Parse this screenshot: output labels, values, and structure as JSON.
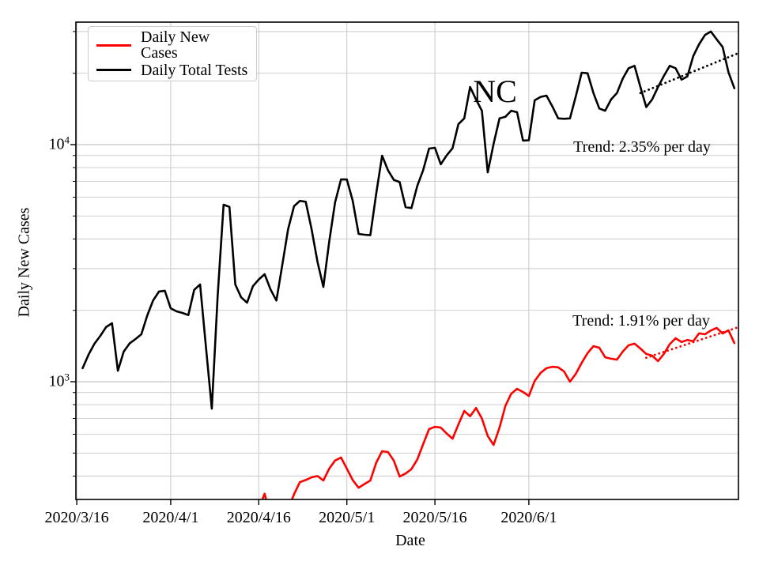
{
  "axes": {
    "xlabel": "Date",
    "ylabel": "Daily New Cases",
    "y_ticks": [
      {
        "base": "10",
        "exp": "3",
        "value": 1000
      },
      {
        "base": "10",
        "exp": "4",
        "value": 10000
      }
    ]
  },
  "annotations": {
    "state": "NC",
    "tests_trend": "Trend: 2.35% per day",
    "cases_trend": "Trend: 1.91% per day"
  },
  "colors": {
    "cases_line": "#ff0000",
    "tests_line": "#000000",
    "grid_major": "#b5b5b5",
    "grid_minor": "#c9c9c9",
    "spine": "#000000"
  },
  "chart_data": {
    "type": "line",
    "title": "NC",
    "xlabel": "Date",
    "ylabel": "Daily New Cases",
    "y_scale": "log",
    "grid": "both",
    "legend_position": "upper left",
    "x_unit": "days since 2020/3/16",
    "x_start_date": "2020/3/16",
    "x_range_days": [
      -0.15,
      112.7
    ],
    "y_range": [
      318,
      32700
    ],
    "x_ticks": [
      {
        "day": 0,
        "label": "2020/3/16"
      },
      {
        "day": 16,
        "label": "2020/4/1"
      },
      {
        "day": 31,
        "label": "2020/4/16"
      },
      {
        "day": 46,
        "label": "2020/5/1"
      },
      {
        "day": 61,
        "label": "2020/5/16"
      },
      {
        "day": 77,
        "label": "2020/6/1"
      }
    ],
    "y_tick_values": [
      1000,
      10000
    ],
    "y_minor_values": [
      400,
      500,
      600,
      700,
      800,
      900,
      2000,
      3000,
      4000,
      5000,
      6000,
      7000,
      8000,
      9000,
      20000,
      30000
    ],
    "series": [
      {
        "name": "Daily New Cases",
        "color": "#ff0000",
        "style": "solid",
        "x_days": [
          30,
          31,
          32,
          33,
          34,
          35,
          36,
          37,
          38,
          39,
          40,
          41,
          42,
          43,
          44,
          45,
          46,
          47,
          48,
          49,
          50,
          51,
          52,
          53,
          54,
          55,
          56,
          57,
          58,
          59,
          60,
          61,
          62,
          63,
          64,
          65,
          66,
          67,
          68,
          69,
          70,
          71,
          72,
          73,
          74,
          75,
          76,
          77,
          78,
          79,
          80,
          81,
          82,
          83,
          84,
          85,
          86,
          87,
          88,
          89,
          90,
          91,
          92,
          93,
          94,
          95,
          96,
          97,
          98,
          99,
          100,
          101,
          102,
          103,
          104,
          105,
          106,
          107,
          108,
          109,
          110,
          111,
          112
        ],
        "values": [
          260,
          290,
          337,
          270,
          250,
          265,
          290,
          335,
          377,
          385,
          395,
          400,
          383,
          430,
          465,
          479,
          430,
          385,
          357,
          370,
          383,
          455,
          509,
          505,
          465,
          398,
          410,
          428,
          470,
          545,
          631,
          645,
          640,
          605,
          575,
          660,
          753,
          715,
          775,
          700,
          590,
          541,
          640,
          790,
          890,
          933,
          905,
          871,
          1008,
          1090,
          1140,
          1156,
          1150,
          1104,
          1000,
          1080,
          1200,
          1320,
          1413,
          1391,
          1268,
          1250,
          1239,
          1340,
          1424,
          1446,
          1380,
          1309,
          1288,
          1222,
          1310,
          1440,
          1525,
          1470,
          1500,
          1480,
          1600,
          1585,
          1645,
          1686,
          1597,
          1647,
          1455
        ]
      },
      {
        "name": "Daily Total Tests",
        "color": "#000000",
        "style": "solid",
        "x_days": [
          1,
          2,
          3,
          4,
          5,
          6,
          7,
          8,
          9,
          10,
          11,
          12,
          13,
          14,
          15,
          16,
          17,
          18,
          19,
          20,
          21,
          22,
          23,
          24,
          25,
          26,
          27,
          28,
          29,
          30,
          31,
          32,
          33,
          34,
          35,
          36,
          37,
          38,
          39,
          40,
          41,
          42,
          43,
          44,
          45,
          46,
          47,
          48,
          49,
          50,
          51,
          52,
          53,
          54,
          55,
          56,
          57,
          58,
          59,
          60,
          61,
          62,
          63,
          64,
          65,
          66,
          67,
          68,
          69,
          70,
          71,
          72,
          73,
          74,
          75,
          76,
          77,
          78,
          79,
          80,
          81,
          82,
          83,
          84,
          85,
          86,
          87,
          88,
          89,
          90,
          91,
          92,
          93,
          94,
          95,
          96,
          97,
          98,
          99,
          100,
          101,
          102,
          103,
          104,
          105,
          106,
          107,
          108,
          109,
          110,
          111,
          112
        ],
        "values": [
          1140,
          1300,
          1445,
          1560,
          1700,
          1765,
          1113,
          1340,
          1450,
          1513,
          1585,
          1900,
          2200,
          2400,
          2420,
          2040,
          1980,
          1950,
          1910,
          2440,
          2570,
          1400,
          770,
          2300,
          5580,
          5460,
          2570,
          2270,
          2155,
          2530,
          2700,
          2840,
          2450,
          2200,
          3100,
          4400,
          5500,
          5790,
          5740,
          4400,
          3200,
          2510,
          3900,
          5700,
          7130,
          7130,
          5800,
          4200,
          4170,
          4150,
          6200,
          8980,
          7800,
          7100,
          6950,
          5450,
          5400,
          6700,
          7800,
          9620,
          9700,
          8260,
          9000,
          9650,
          12200,
          12900,
          17500,
          15500,
          13900,
          7640,
          10070,
          12900,
          13100,
          13900,
          13700,
          10400,
          10430,
          15380,
          15900,
          16100,
          14500,
          12900,
          12850,
          12900,
          16000,
          20100,
          20000,
          16500,
          14200,
          13900,
          15500,
          16500,
          19000,
          21000,
          21500,
          17500,
          14400,
          15500,
          17500,
          19500,
          21500,
          21000,
          18800,
          19400,
          23600,
          26500,
          29000,
          30000,
          27800,
          25800,
          20200,
          17300
        ]
      }
    ],
    "trend_lines": [
      {
        "name": "Daily Total Tests trend",
        "label": "Trend: 2.35% per day",
        "color": "#000000",
        "style": "dotted",
        "rate_pct_per_day": 2.35,
        "start_day": 96,
        "end_day": 112.7,
        "start_value": 16500
      },
      {
        "name": "Daily New Cases trend",
        "label": "Trend: 1.91% per day",
        "color": "#ff0000",
        "style": "dotted",
        "rate_pct_per_day": 1.91,
        "start_day": 97,
        "end_day": 112.7,
        "start_value": 1262
      }
    ]
  },
  "legend": {
    "items": [
      {
        "label": "Daily New Cases",
        "color": "#ff0000"
      },
      {
        "label": "Daily Total Tests",
        "color": "#000000"
      }
    ]
  }
}
